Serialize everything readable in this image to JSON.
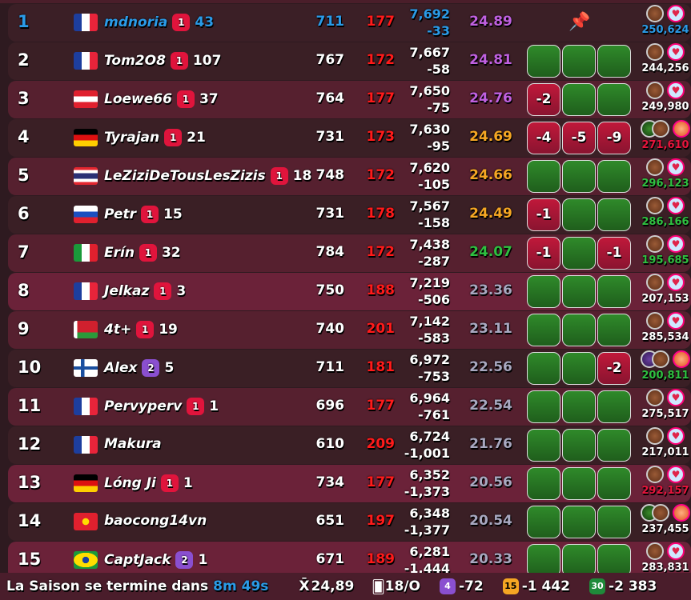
{
  "colors": {
    "self": "#2a9be8",
    "purple": "#c060e0",
    "orange": "#f5a623",
    "green": "#2ec040",
    "grey": "#a8a8c0",
    "red": "#e8143c",
    "white": "#ffffff"
  },
  "rows": [
    {
      "rank": "1",
      "flag": "FR",
      "name": "mdnoria",
      "badge": "1",
      "badge_color": "red",
      "count": "43",
      "c1": "711",
      "c2": "177",
      "score": "7,692",
      "delta": "-33",
      "avg": "24.89",
      "avg_color": "purple",
      "cells": null,
      "pinned": true,
      "icons": [
        "orb",
        "heart"
      ],
      "points": "250,624",
      "points_color": "self",
      "self": true
    },
    {
      "rank": "2",
      "flag": "FR",
      "name": "Tom2O8",
      "badge": "1",
      "badge_color": "red",
      "count": "107",
      "c1": "767",
      "c2": "172",
      "score": "7,667",
      "delta": "-58",
      "avg": "24.81",
      "avg_color": "purple",
      "cells": [
        "",
        "",
        ""
      ],
      "icons": [
        "orb",
        "heart"
      ],
      "points": "244,256",
      "points_color": "white"
    },
    {
      "rank": "3",
      "flag": "AT",
      "name": "Loewe66",
      "badge": "1",
      "badge_color": "red",
      "count": "37",
      "c1": "764",
      "c2": "177",
      "score": "7,650",
      "delta": "-75",
      "avg": "24.76",
      "avg_color": "purple",
      "cells": [
        "-2",
        "",
        ""
      ],
      "icons": [
        "orb",
        "heart"
      ],
      "points": "249,980",
      "points_color": "white"
    },
    {
      "rank": "4",
      "flag": "DE",
      "name": "Tyrajan",
      "badge": "1",
      "badge_color": "red",
      "count": "21",
      "c1": "731",
      "c2": "173",
      "score": "7,630",
      "delta": "-95",
      "avg": "24.69",
      "avg_color": "orange",
      "cells": [
        "-4",
        "-5",
        "-9"
      ],
      "icons": [
        "green-orb",
        "orb",
        "swirl"
      ],
      "points": "271,610",
      "points_color": "red"
    },
    {
      "rank": "5",
      "flag": "TH",
      "name": "LeZiziDeTousLesZizis",
      "badge": "1",
      "badge_color": "red",
      "count": "18",
      "c1": "748",
      "c2": "172",
      "score": "7,620",
      "delta": "-105",
      "avg": "24.66",
      "avg_color": "orange",
      "cells": [
        "",
        "",
        ""
      ],
      "icons": [
        "orb",
        "heart"
      ],
      "points": "296,123",
      "points_color": "green"
    },
    {
      "rank": "6",
      "flag": "RU",
      "name": "Petr",
      "badge": "1",
      "badge_color": "red",
      "count": "15",
      "c1": "731",
      "c2": "178",
      "score": "7,567",
      "delta": "-158",
      "avg": "24.49",
      "avg_color": "orange",
      "cells": [
        "-1",
        "",
        ""
      ],
      "icons": [
        "orb",
        "heart"
      ],
      "points": "286,166",
      "points_color": "green"
    },
    {
      "rank": "7",
      "flag": "IT",
      "name": "Erín",
      "badge": "1",
      "badge_color": "red",
      "count": "32",
      "c1": "784",
      "c2": "172",
      "score": "7,438",
      "delta": "-287",
      "avg": "24.07",
      "avg_color": "green",
      "cells": [
        "-1",
        "",
        "-1"
      ],
      "icons": [
        "orb",
        "heart"
      ],
      "points": "195,685",
      "points_color": "green"
    },
    {
      "rank": "8",
      "flag": "FR",
      "name": "Jelkaz",
      "badge": "1",
      "badge_color": "red",
      "count": "3",
      "c1": "750",
      "c2": "188",
      "score": "7,219",
      "delta": "-506",
      "avg": "23.36",
      "avg_color": "grey",
      "cells": [
        "",
        "",
        ""
      ],
      "icons": [
        "orb",
        "heart"
      ],
      "points": "207,153",
      "points_color": "white"
    },
    {
      "rank": "9",
      "flag": "BY",
      "name": "4t+",
      "badge": "1",
      "badge_color": "red",
      "count": "19",
      "c1": "740",
      "c2": "201",
      "score": "7,142",
      "delta": "-583",
      "avg": "23.11",
      "avg_color": "grey",
      "cells": [
        "",
        "",
        ""
      ],
      "icons": [
        "orb",
        "heart"
      ],
      "points": "285,534",
      "points_color": "white"
    },
    {
      "rank": "10",
      "flag": "FI",
      "name": "Alex",
      "badge": "2",
      "badge_color": "purple",
      "count": "5",
      "c1": "711",
      "c2": "181",
      "score": "6,972",
      "delta": "-753",
      "avg": "22.56",
      "avg_color": "grey",
      "cells": [
        "",
        "",
        "-2"
      ],
      "icons": [
        "purple-orb",
        "orb",
        "burst"
      ],
      "points": "200,811",
      "points_color": "green"
    },
    {
      "rank": "11",
      "flag": "FR",
      "name": "Pervyperv",
      "badge": "1",
      "badge_color": "red",
      "count": "1",
      "c1": "696",
      "c2": "177",
      "score": "6,964",
      "delta": "-761",
      "avg": "22.54",
      "avg_color": "grey",
      "cells": [
        "",
        "",
        ""
      ],
      "icons": [
        "orb",
        "heart"
      ],
      "points": "275,517",
      "points_color": "white"
    },
    {
      "rank": "12",
      "flag": "FR",
      "name": "Makura",
      "badge": null,
      "count": "",
      "c1": "610",
      "c2": "209",
      "score": "6,724",
      "delta": "-1,001",
      "avg": "21.76",
      "avg_color": "grey",
      "cells": [
        "",
        "",
        ""
      ],
      "icons": [
        "orb",
        "heart"
      ],
      "points": "217,011",
      "points_color": "white"
    },
    {
      "rank": "13",
      "flag": "DE",
      "name": "Lóng Ji",
      "badge": "1",
      "badge_color": "red",
      "count": "1",
      "c1": "734",
      "c2": "177",
      "score": "6,352",
      "delta": "-1,373",
      "avg": "20.56",
      "avg_color": "grey",
      "cells": [
        "",
        "",
        ""
      ],
      "icons": [
        "orb",
        "heart"
      ],
      "points": "292,157",
      "points_color": "red"
    },
    {
      "rank": "14",
      "flag": "VN",
      "name": "baocong14vn",
      "badge": null,
      "count": "",
      "c1": "651",
      "c2": "197",
      "score": "6,348",
      "delta": "-1,377",
      "avg": "20.54",
      "avg_color": "grey",
      "cells": [
        "",
        "",
        ""
      ],
      "icons": [
        "green-orb",
        "orb",
        "burst"
      ],
      "points": "237,455",
      "points_color": "white"
    },
    {
      "rank": "15",
      "flag": "BR",
      "name": "CaptJack",
      "badge": "2",
      "badge_color": "purple",
      "count": "1",
      "c1": "671",
      "c2": "189",
      "score": "6,281",
      "delta": "-1,444",
      "avg": "20.33",
      "avg_color": "grey",
      "cells": [
        "",
        "",
        ""
      ],
      "icons": [
        "orb",
        "heart"
      ],
      "points": "283,831",
      "points_color": "white"
    }
  ],
  "footer": {
    "season_label": "La Saison se termine dans",
    "timer": "8m 49s",
    "mean_symbol": "X̄",
    "mean": "24,89",
    "cards": "18/O",
    "b1": "4",
    "v1": "-72",
    "b2": "15",
    "v2": "-1 442",
    "b3": "30",
    "v3": "-2 383"
  }
}
